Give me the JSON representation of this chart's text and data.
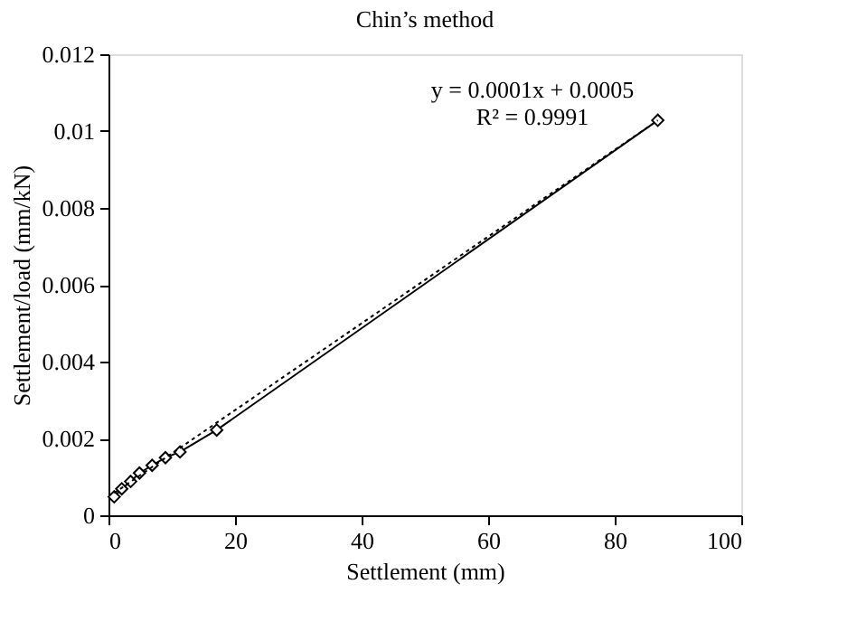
{
  "chart_data": {
    "type": "line",
    "title": "Chin’s method",
    "xlabel": "Settlement (mm)",
    "ylabel": "Settlement/load (mm/kN)",
    "xlim": [
      0,
      100
    ],
    "xticks": [
      0,
      20,
      40,
      60,
      80,
      100
    ],
    "ylim": [
      0,
      0.012
    ],
    "yticks": [
      0,
      0.002,
      0.004,
      0.006,
      0.008,
      0.01,
      0.012
    ],
    "grid": false,
    "legend": false,
    "series": [
      {
        "color": "#000000",
        "marker": "diamond",
        "line_style": "solid",
        "x": [
          0.9,
          2.1,
          3.5,
          4.9,
          6.9,
          9.0,
          11.3,
          17.1,
          86.8
        ],
        "values": [
          0.00048,
          0.00069,
          0.00088,
          0.0011,
          0.0013,
          0.0015,
          0.00165,
          0.00222,
          0.01028
        ]
      },
      {
        "color": "#000000",
        "marker": "none",
        "line_style": "dotted",
        "x": [
          0.9,
          86.8
        ],
        "values": [
          0.00058,
          0.01028
        ]
      }
    ],
    "annotations": [
      "y = 0.0001x + 0.0005",
      "R² = 0.9991"
    ]
  }
}
